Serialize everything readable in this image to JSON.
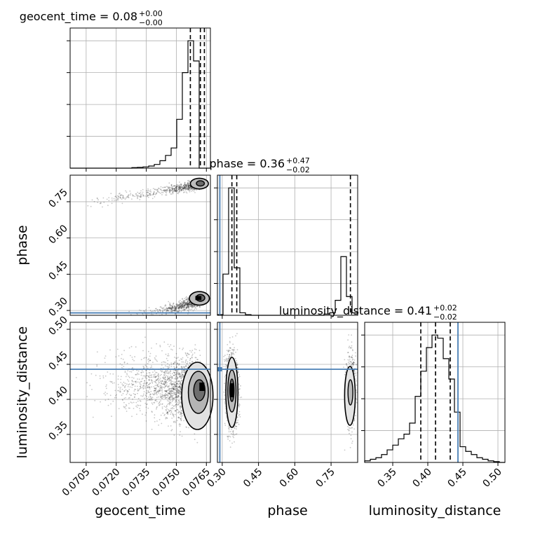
{
  "chart_data": {
    "type": "corner",
    "parameters": [
      {
        "name": "geocent_time",
        "title": "geocent_time = 0.08",
        "title_plus": "+0.00",
        "title_minus": "−0.00",
        "range": [
          0.0697,
          0.0767
        ],
        "ticks": [
          0.0705,
          0.072,
          0.0735,
          0.075,
          0.0765
        ],
        "tick_labels": [
          "0.0705",
          "0.0720",
          "0.0735",
          "0.0750",
          "0.0765"
        ],
        "quantiles": [
          0.0757,
          0.0762,
          0.0764
        ],
        "hist_bins": [
          0.0697,
          0.06998,
          0.07026,
          0.07054,
          0.07082,
          0.0711,
          0.07138,
          0.07166,
          0.07194,
          0.07222,
          0.0725,
          0.07278,
          0.07306,
          0.07334,
          0.07362,
          0.0739,
          0.07418,
          0.07446,
          0.07474,
          0.07502,
          0.0753,
          0.07558,
          0.07586,
          0.07614,
          0.07642,
          0.0767
        ],
        "hist_values": [
          0,
          0,
          0,
          0,
          0,
          0,
          0,
          0,
          0,
          0,
          0,
          0.5,
          0.8,
          1.2,
          2,
          3.5,
          7,
          12,
          19,
          46,
          90,
          120,
          101,
          0,
          0
        ]
      },
      {
        "name": "phase",
        "title": "phase = 0.36",
        "title_plus": "+0.47",
        "title_minus": "−0.02",
        "range": [
          0.28,
          0.86
        ],
        "ticks": [
          0.3,
          0.45,
          0.6,
          0.75
        ],
        "tick_labels": [
          "0.30",
          "0.45",
          "0.60",
          "0.75"
        ],
        "quantiles": [
          0.34,
          0.36,
          0.83
        ],
        "injection": 0.29,
        "hist_bins": [
          0.28,
          0.3032,
          0.3264,
          0.3496,
          0.3728,
          0.396,
          0.4192,
          0.4424,
          0.4656,
          0.4888,
          0.512,
          0.5352,
          0.5584,
          0.5816,
          0.6048,
          0.628,
          0.6512,
          0.6744,
          0.6976,
          0.7208,
          0.744,
          0.7672,
          0.7904,
          0.8136,
          0.8368,
          0.86
        ],
        "hist_values": [
          0.5,
          33,
          102,
          38,
          2,
          0.5,
          0,
          0,
          0,
          0,
          0,
          0,
          0,
          0,
          0,
          0,
          0,
          0,
          0,
          1,
          2,
          12,
          47,
          15,
          2
        ]
      },
      {
        "name": "luminosity_distance",
        "title": "luminosity_distance = 0.41",
        "title_plus": "+0.02",
        "title_minus": "−0.02",
        "range": [
          0.31,
          0.51
        ],
        "ticks": [
          0.35,
          0.4,
          0.45,
          0.5
        ],
        "tick_labels": [
          "0.35",
          "0.40",
          "0.45",
          "0.50"
        ],
        "quantiles": [
          0.39,
          0.411,
          0.432
        ],
        "injection": 0.443,
        "hist_bins": [
          0.31,
          0.318,
          0.326,
          0.334,
          0.342,
          0.35,
          0.358,
          0.366,
          0.374,
          0.382,
          0.39,
          0.398,
          0.406,
          0.414,
          0.422,
          0.43,
          0.438,
          0.446,
          0.454,
          0.462,
          0.47,
          0.478,
          0.486,
          0.494,
          0.502,
          0.51
        ],
        "hist_values": [
          1,
          2,
          3,
          5,
          8,
          11,
          15,
          18,
          25,
          42,
          58,
          73,
          81,
          79,
          66,
          53,
          32,
          10,
          7,
          5,
          3,
          2,
          1,
          0.5,
          0
        ]
      }
    ],
    "axis_labels": {
      "x": [
        "geocent_time",
        "phase",
        "luminosity_distance"
      ],
      "y": [
        "phase",
        "luminosity_distance"
      ]
    },
    "injection_color": "#4a7fb5",
    "quantile_color": "#000000",
    "grid": true
  }
}
